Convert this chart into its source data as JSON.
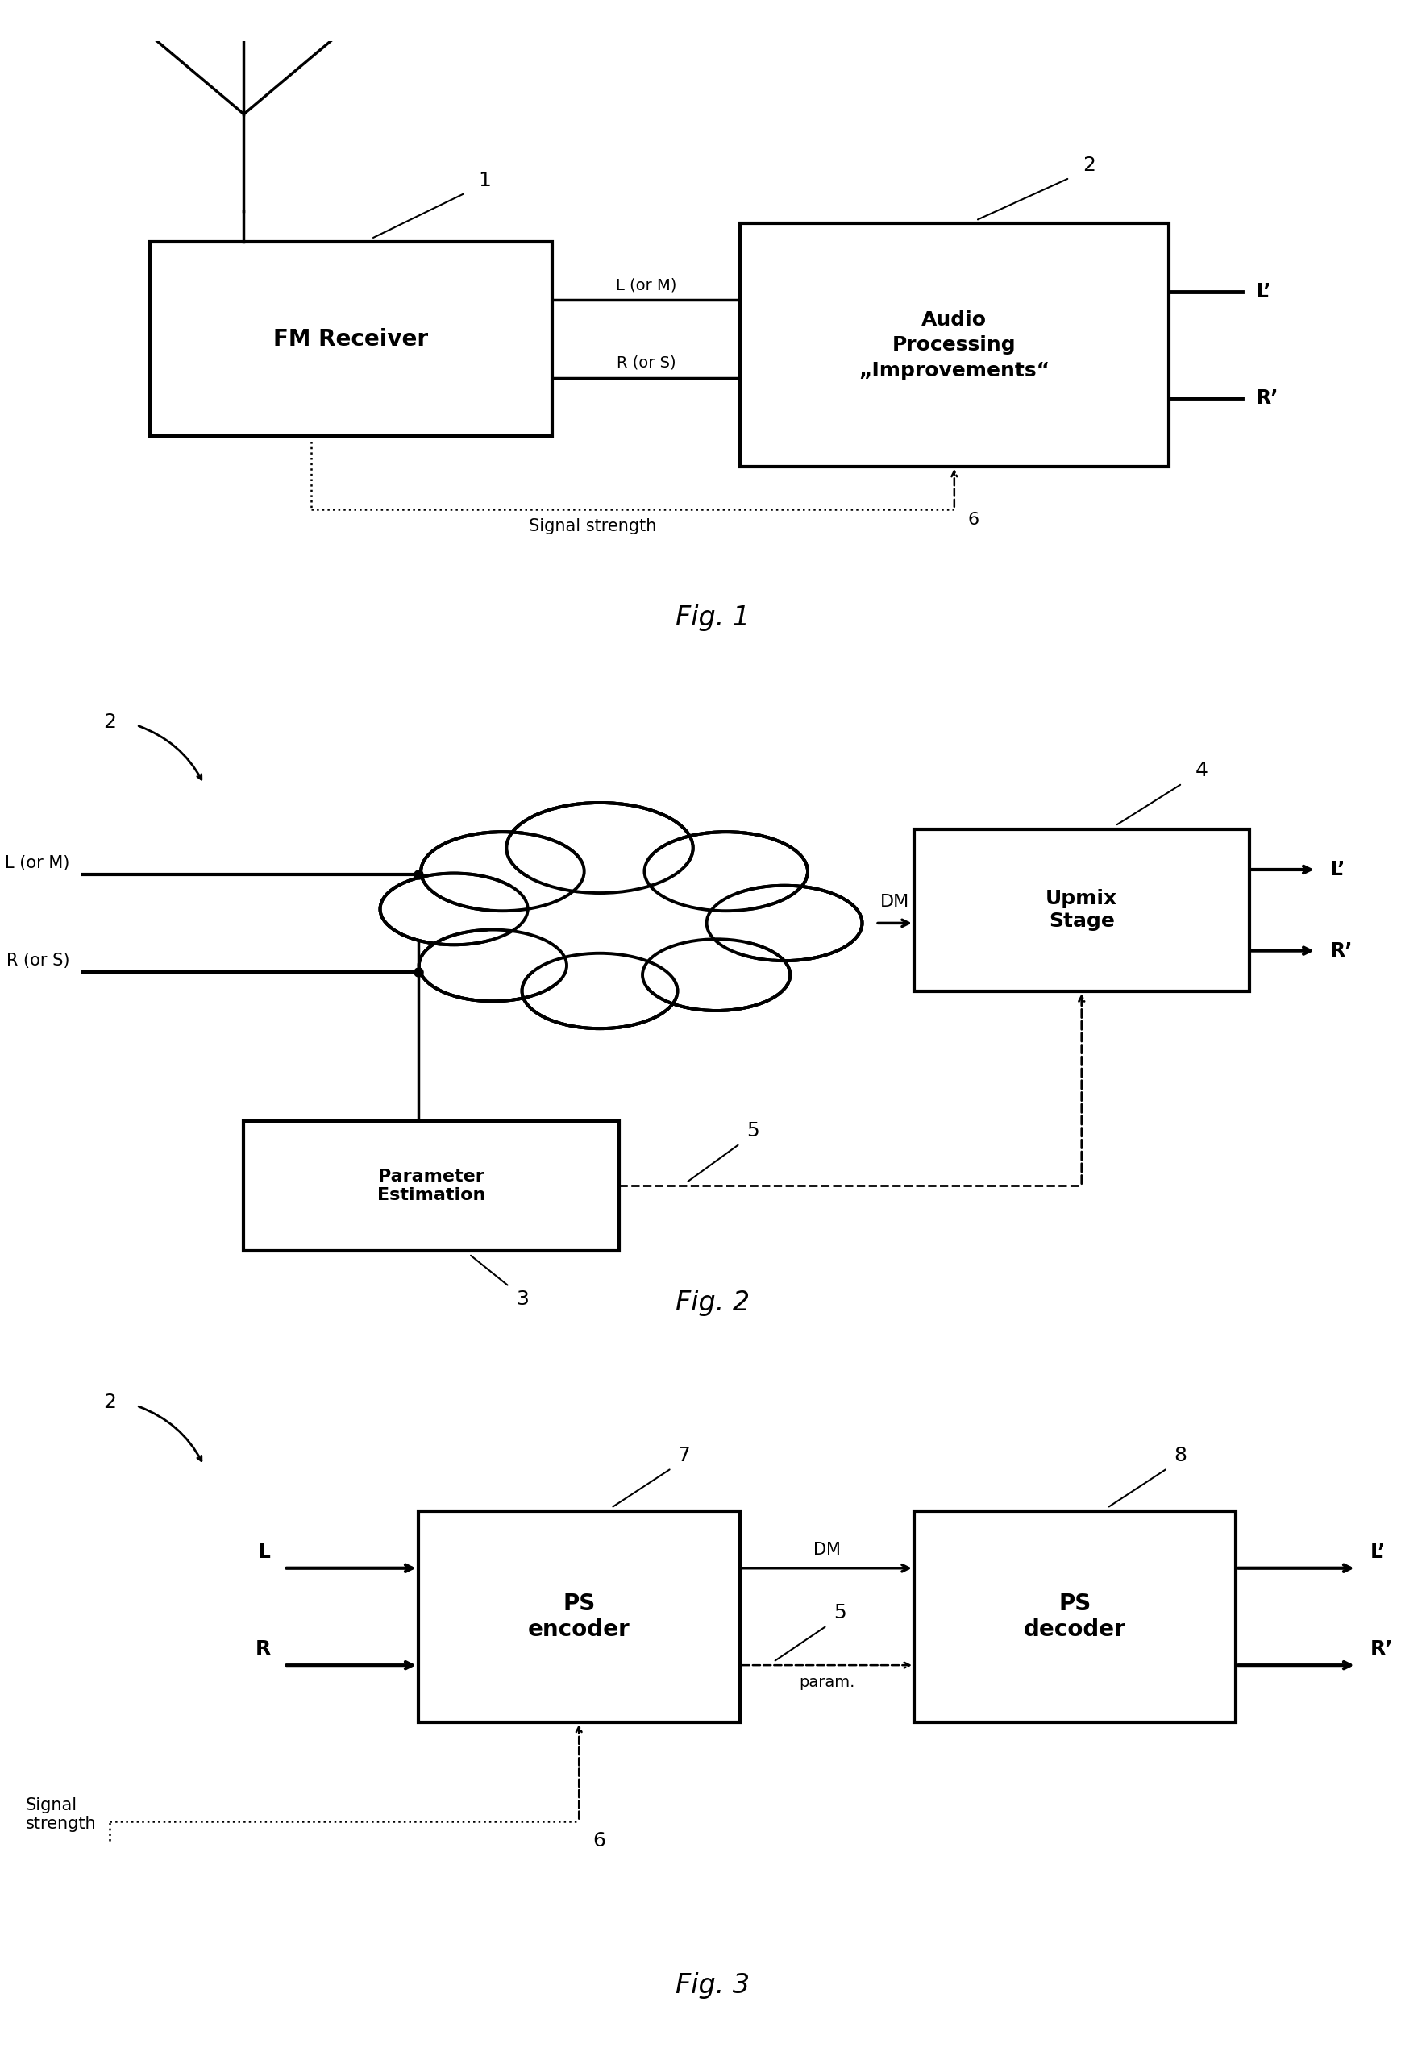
{
  "background_color": "#ffffff",
  "fig1": {
    "title": "Fig. 1",
    "fm_label": "FM Receiver",
    "audio_label": "Audio\nProcessing\n„Improvements“",
    "label1": "1",
    "label2": "2",
    "label6": "6",
    "L_or_M": "L (or M)",
    "R_or_S": "R (or S)",
    "L_prime": "L’",
    "R_prime": "R’",
    "signal_strength": "Signal strength"
  },
  "fig2": {
    "title": "Fig. 2",
    "label2": "2",
    "label3": "3",
    "label4": "4",
    "label5": "5",
    "L_or_M": "L (or M)",
    "R_or_S": "R (or S)",
    "DM": "DM",
    "upmix_label": "Upmix\nStage",
    "param_label": "Parameter\nEstimation",
    "L_prime": "L’",
    "R_prime": "R’"
  },
  "fig3": {
    "title": "Fig. 3",
    "label2": "2",
    "label5": "5",
    "label6": "6",
    "label7": "7",
    "label8": "8",
    "L": "L",
    "R": "R",
    "DM": "DM",
    "param": "param.",
    "ps_encoder_label": "PS\nencoder",
    "ps_decoder_label": "PS\ndecoder",
    "L_prime": "L’",
    "R_prime": "R’",
    "signal_strength": "Signal\nstrength"
  }
}
